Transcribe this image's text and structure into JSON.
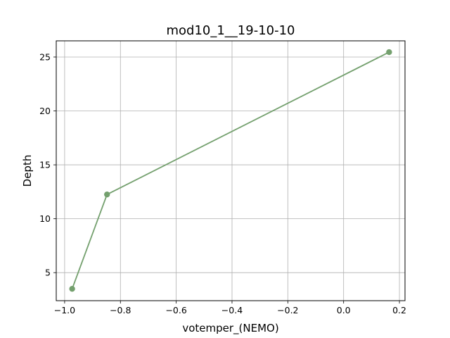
{
  "chart_data": {
    "type": "line",
    "title": "mod10_1__19-10-10",
    "xlabel": "votemper_(NEMO)",
    "ylabel": "Depth",
    "xlim": [
      -1.03,
      0.22
    ],
    "ylim": [
      2.4,
      26.5
    ],
    "x_ticks": [
      -1.0,
      -0.8,
      -0.6,
      -0.4,
      -0.2,
      0.0,
      0.2
    ],
    "x_tick_labels": [
      "−1.0",
      "−0.8",
      "−0.6",
      "−0.4",
      "−0.2",
      "0.0",
      "0.2"
    ],
    "y_ticks": [
      5,
      10,
      15,
      20,
      25
    ],
    "y_tick_labels": [
      "5",
      "10",
      "15",
      "20",
      "25"
    ],
    "grid": true,
    "series": [
      {
        "color": "#74a06e",
        "marker": "circle",
        "points": [
          {
            "x": -0.973,
            "y": 3.5
          },
          {
            "x": -0.848,
            "y": 12.25
          },
          {
            "x": 0.163,
            "y": 25.45
          }
        ]
      }
    ]
  }
}
